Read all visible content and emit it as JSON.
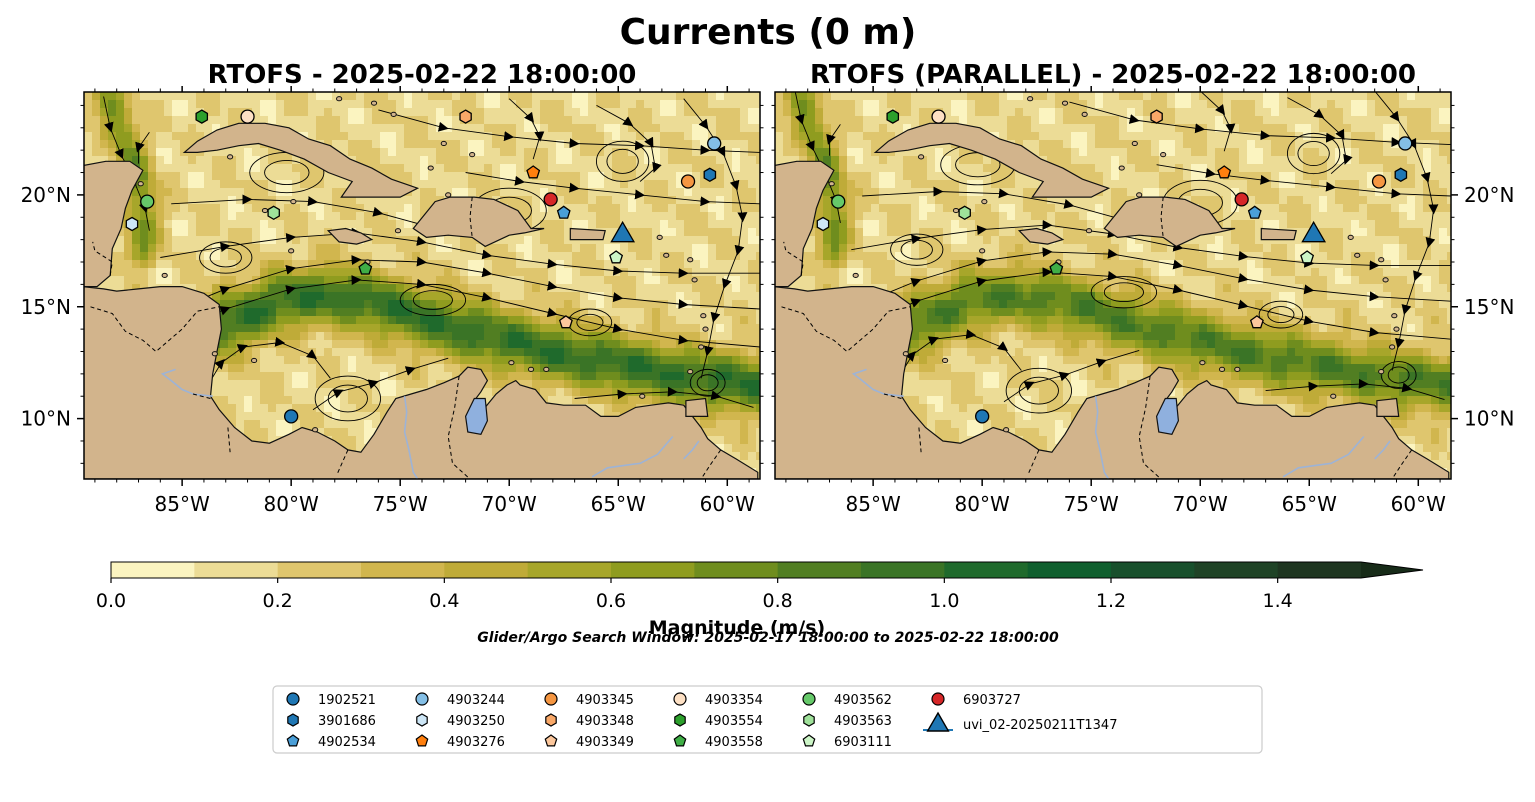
{
  "figure": {
    "title": "Currents (0 m)",
    "search_window": "Glider/Argo Search Window: 2025-02-17 18:00:00 to 2025-02-22 18:00:00"
  },
  "colors": {
    "land": "#d2b48c",
    "coast": "#111111",
    "river": "#9db3d6",
    "lake": "#8fb0de"
  },
  "chart_data": [
    {
      "type": "map",
      "title": "RTOFS - 2025-02-22 18:00:00",
      "variable": "surface current magnitude",
      "xlim": [
        -89.5,
        -58.5
      ],
      "ylim": [
        7.3,
        24.6
      ],
      "xticks": [
        -85,
        -80,
        -75,
        -70,
        -65,
        -60
      ],
      "xtick_labels": [
        "85°W",
        "80°W",
        "75°W",
        "70°W",
        "65°W",
        "60°W"
      ],
      "yticks": [
        10,
        15,
        20
      ],
      "ytick_labels": [
        "10°N",
        "15°N",
        "20°N"
      ],
      "ytick_side": "left",
      "jet_strength": 1.0
    },
    {
      "type": "map",
      "title": "RTOFS (PARALLEL) - 2025-02-22 18:00:00",
      "variable": "surface current magnitude",
      "xlim": [
        -89.5,
        -58.5
      ],
      "ylim": [
        7.3,
        24.6
      ],
      "xticks": [
        -85,
        -80,
        -75,
        -70,
        -65,
        -60
      ],
      "xtick_labels": [
        "85°W",
        "80°W",
        "75°W",
        "70°W",
        "65°W",
        "60°W"
      ],
      "yticks": [
        10,
        15,
        20
      ],
      "ytick_labels": [
        "10°N",
        "15°N",
        "20°N"
      ],
      "ytick_side": "right",
      "jet_strength": 0.85
    }
  ],
  "colorbar": {
    "label": "Magnitude (m/s)",
    "min": 0.0,
    "max": 1.5,
    "step": 0.1,
    "extend": "max",
    "ticks": [
      0.0,
      0.2,
      0.4,
      0.6,
      0.8,
      1.0,
      1.2,
      1.4
    ],
    "tick_labels": [
      "0.0",
      "0.2",
      "0.4",
      "0.6",
      "0.8",
      "1.0",
      "1.2",
      "1.4"
    ],
    "colors": [
      "#fbf4c0",
      "#ecdc96",
      "#dfc66e",
      "#d1b64e",
      "#bfab38",
      "#a7a62a",
      "#8f9c1f",
      "#6f8d1e",
      "#517e22",
      "#3a7426",
      "#1f6a2c",
      "#0f5f2e",
      "#18502c",
      "#1f4326",
      "#1e3520"
    ],
    "extend_color": "#172b18"
  },
  "legend": {
    "entries": [
      {
        "id": "1902521",
        "marker": "circle",
        "color": "#1f77b4",
        "lon": -80.0,
        "lat": 10.1
      },
      {
        "id": "3901686",
        "marker": "hexagon",
        "color": "#1f77b4",
        "lon": -60.8,
        "lat": 20.9
      },
      {
        "id": "4902534",
        "marker": "pentagon",
        "color": "#4a9fd8",
        "lon": -67.5,
        "lat": 19.2
      },
      {
        "id": "4903244",
        "marker": "circle",
        "color": "#84bfe6",
        "lon": -60.6,
        "lat": 22.3
      },
      {
        "id": "4903250",
        "marker": "hexagon",
        "color": "#cde6f6",
        "lon": -87.3,
        "lat": 18.7
      },
      {
        "id": "4903276",
        "marker": "pentagon",
        "color": "#ff7f0e",
        "lon": -68.9,
        "lat": 21.0
      },
      {
        "id": "4903345",
        "marker": "circle",
        "color": "#f59641",
        "lon": -61.8,
        "lat": 20.6
      },
      {
        "id": "4903348",
        "marker": "hexagon",
        "color": "#f9a868",
        "lon": -72.0,
        "lat": 23.5
      },
      {
        "id": "4903349",
        "marker": "pentagon",
        "color": "#fcc79c",
        "lon": -67.4,
        "lat": 14.3
      },
      {
        "id": "4903354",
        "marker": "circle",
        "color": "#fde0c4",
        "lon": -82.0,
        "lat": 23.5
      },
      {
        "id": "4903554",
        "marker": "hexagon",
        "color": "#2ca02c",
        "lon": -84.1,
        "lat": 23.5
      },
      {
        "id": "4903558",
        "marker": "pentagon",
        "color": "#3fae46",
        "lon": -76.6,
        "lat": 16.7
      },
      {
        "id": "4903562",
        "marker": "circle",
        "color": "#66c96a",
        "lon": -86.6,
        "lat": 19.7
      },
      {
        "id": "4903563",
        "marker": "hexagon",
        "color": "#9fe19a",
        "lon": -80.8,
        "lat": 19.2
      },
      {
        "id": "6903111",
        "marker": "pentagon",
        "color": "#ccf5c7",
        "lon": -65.1,
        "lat": 17.2
      },
      {
        "id": "6903727",
        "marker": "circle",
        "color": "#d62728",
        "lon": -68.1,
        "lat": 19.8
      },
      {
        "id": "uvi_02-20250211T1347",
        "marker": "triangle",
        "color": "#1f77b4",
        "lon": -64.8,
        "lat": 18.2
      }
    ]
  }
}
